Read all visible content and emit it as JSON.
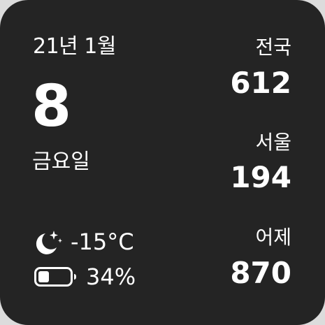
{
  "date": {
    "year_month": "21년 1월",
    "day": "8",
    "weekday": "금요일"
  },
  "weather": {
    "icon": "moon-stars-icon",
    "temperature": "-15°C"
  },
  "battery": {
    "icon": "battery-icon",
    "level_text": "34%",
    "level_fraction": 0.34
  },
  "stats": [
    {
      "label": "전국",
      "value": "612"
    },
    {
      "label": "서울",
      "value": "194"
    },
    {
      "label": "어제",
      "value": "870"
    }
  ],
  "colors": {
    "background": "#242424",
    "text": "#ffffff"
  }
}
